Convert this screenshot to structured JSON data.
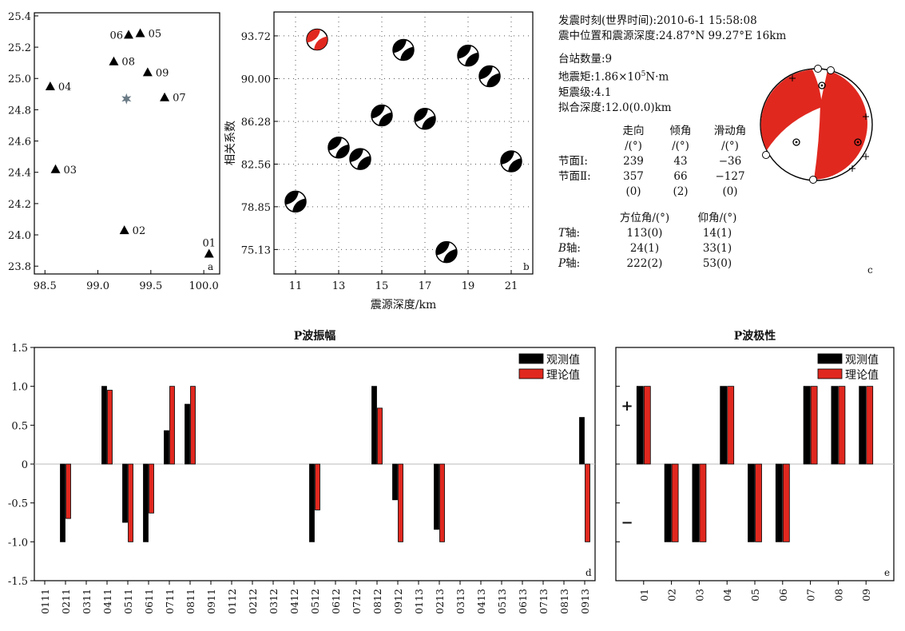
{
  "chart_data": [
    {
      "type": "scatter",
      "panel": "a",
      "panel_label": "a",
      "xlim": [
        98.4,
        100.15
      ],
      "ylim": [
        23.75,
        25.42
      ],
      "xticks": [
        "98.5",
        "99.0",
        "99.5",
        "100.0"
      ],
      "xtick_values": [
        98.5,
        99.0,
        99.5,
        100.0
      ],
      "yticks": [
        "25.4",
        "25.2",
        "25.0",
        "24.8",
        "24.6",
        "24.4",
        "24.2",
        "24.0",
        "23.8"
      ],
      "ytick_values": [
        25.4,
        25.2,
        25.0,
        24.8,
        24.6,
        24.4,
        24.2,
        24.0,
        23.8
      ],
      "stations": [
        {
          "label": "01",
          "lon": 100.05,
          "lat": 23.88,
          "label_pos": "top"
        },
        {
          "label": "02",
          "lon": 99.25,
          "lat": 24.03,
          "label_pos": "right"
        },
        {
          "label": "03",
          "lon": 98.6,
          "lat": 24.42,
          "label_pos": "right"
        },
        {
          "label": "04",
          "lon": 98.55,
          "lat": 24.95,
          "label_pos": "right"
        },
        {
          "label": "05",
          "lon": 99.4,
          "lat": 25.29,
          "label_pos": "right"
        },
        {
          "label": "06",
          "lon": 99.29,
          "lat": 25.28,
          "label_pos": "left"
        },
        {
          "label": "07",
          "lon": 99.63,
          "lat": 24.88,
          "label_pos": "right"
        },
        {
          "label": "08",
          "lon": 99.15,
          "lat": 25.11,
          "label_pos": "right"
        },
        {
          "label": "09",
          "lon": 99.47,
          "lat": 25.04,
          "label_pos": "right"
        }
      ],
      "epicenter": {
        "lon": 99.27,
        "lat": 24.87
      }
    },
    {
      "type": "scatter",
      "panel": "b",
      "panel_label": "b",
      "xlabel": "震源深度/km",
      "ylabel": "相关系数",
      "xlim": [
        10,
        22
      ],
      "ylim": [
        73.0,
        95.8
      ],
      "xticks": [
        "11",
        "13",
        "15",
        "17",
        "19",
        "21"
      ],
      "xtick_values": [
        11,
        13,
        15,
        17,
        19,
        21
      ],
      "yticks": [
        "93.72",
        "90.00",
        "86.28",
        "82.56",
        "78.85",
        "75.13"
      ],
      "ytick_values": [
        93.72,
        90.0,
        86.28,
        82.56,
        78.85,
        75.13
      ],
      "points": [
        {
          "x": 11,
          "y": 79.3
        },
        {
          "x": 12,
          "y": 93.4,
          "best": true
        },
        {
          "x": 13,
          "y": 84.0
        },
        {
          "x": 14,
          "y": 83.0
        },
        {
          "x": 15,
          "y": 86.8
        },
        {
          "x": 16,
          "y": 92.5
        },
        {
          "x": 17,
          "y": 86.5
        },
        {
          "x": 18,
          "y": 74.9
        },
        {
          "x": 19,
          "y": 92.0
        },
        {
          "x": 20,
          "y": 90.2
        },
        {
          "x": 21,
          "y": 82.8
        }
      ]
    },
    {
      "type": "bar",
      "panel": "d",
      "panel_label": "d",
      "title": "P波振幅",
      "ylim": [
        -1.5,
        1.5
      ],
      "yticks": [
        "1.5",
        "1.0",
        "0.5",
        "0",
        "-0.5",
        "-1.0",
        "-1.5"
      ],
      "ytick_values": [
        1.5,
        1.0,
        0.5,
        0,
        -0.5,
        -1.0,
        -1.5
      ],
      "categories": [
        "0111",
        "0211",
        "0311",
        "0411",
        "0511",
        "0611",
        "0711",
        "0811",
        "0911",
        "0112",
        "0212",
        "0312",
        "0412",
        "0512",
        "0612",
        "0712",
        "0812",
        "0912",
        "0113",
        "0213",
        "0313",
        "0413",
        "0513",
        "0613",
        "0713",
        "0813",
        "0913"
      ],
      "legend": [
        "观测值",
        "理论值"
      ],
      "series": [
        {
          "name": "观测值",
          "color": "#000000",
          "values": [
            null,
            -1.0,
            null,
            1.0,
            -0.75,
            -1.0,
            0.43,
            0.77,
            null,
            null,
            null,
            null,
            null,
            -1.0,
            null,
            null,
            1.0,
            -0.46,
            null,
            -0.84,
            null,
            null,
            null,
            null,
            null,
            null,
            0.6
          ]
        },
        {
          "name": "理论值",
          "color": "#e0281f",
          "values": [
            null,
            -0.7,
            null,
            0.95,
            -1.0,
            -0.63,
            1.0,
            1.0,
            null,
            null,
            null,
            null,
            null,
            -0.59,
            null,
            null,
            0.72,
            -1.0,
            null,
            -1.0,
            null,
            null,
            null,
            null,
            null,
            null,
            -1.0
          ]
        }
      ]
    },
    {
      "type": "bar",
      "panel": "e",
      "panel_label": "e",
      "title": "P波极性",
      "ylim": [
        -1.5,
        1.5
      ],
      "ytick_labels": [
        "+",
        "−"
      ],
      "categories": [
        "01",
        "02",
        "03",
        "04",
        "05",
        "06",
        "07",
        "08",
        "09"
      ],
      "legend": [
        "观测值",
        "理论值"
      ],
      "series": [
        {
          "name": "观测值",
          "color": "#000000",
          "values": [
            1,
            -1,
            -1,
            1,
            -1,
            -1,
            1,
            1,
            1
          ]
        },
        {
          "name": "理论值",
          "color": "#e0281f",
          "values": [
            1,
            -1,
            -1,
            1,
            -1,
            -1,
            1,
            1,
            1
          ]
        }
      ]
    }
  ],
  "info": {
    "origin_time": "发震时刻(世界时间):2010-6-1 15:58:08",
    "location": "震中位置和震源深度:24.87°N 99.27°E 16km",
    "station_count": "台站数量:9",
    "moment_prefix": "地震矩:1.86×10",
    "moment_exp": "5",
    "moment_suffix": "N·m",
    "magnitude": "矩震级:4.1",
    "fit_depth": "拟合深度:12.0(0.0)km",
    "headers": [
      "走向",
      "倾角",
      "滑动角"
    ],
    "units": [
      "/(°)",
      "/(°)",
      "/(°)"
    ],
    "plane1_label": "节面Ⅰ:",
    "plane1": [
      "239",
      "43",
      "−36"
    ],
    "plane2_label": "节面Ⅱ:",
    "plane2": [
      "357",
      "66",
      "−127"
    ],
    "errors": [
      "(0)",
      "(2)",
      "(0)"
    ],
    "axes_headers": [
      "方位角/(°)",
      "仰角/(°)"
    ],
    "t_axis": {
      "letter": "T",
      "suffix": "轴:",
      "az": "113(0)",
      "pl": "14(1)"
    },
    "b_axis": {
      "letter": "B",
      "suffix": "轴:",
      "az": "24(1)",
      "pl": "33(1)"
    },
    "p_axis": {
      "letter": "P",
      "suffix": "轴:",
      "az": "222(2)",
      "pl": "53(0)"
    },
    "panel_c_label": "c"
  },
  "colors": {
    "red": "#e0281f",
    "black": "#000000",
    "gray_star": "#6b7b86"
  }
}
